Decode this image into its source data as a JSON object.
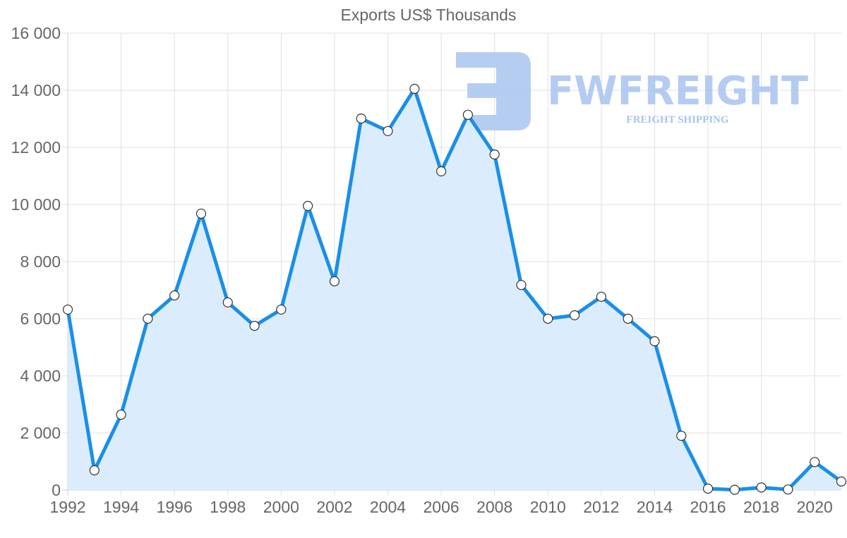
{
  "chart_data": {
    "type": "line",
    "title": "Exports US$ Thousands",
    "xlabel": "",
    "ylabel": "",
    "x": [
      1992,
      1993,
      1994,
      1995,
      1996,
      1997,
      1998,
      1999,
      2000,
      2001,
      2002,
      2003,
      2004,
      2005,
      2006,
      2007,
      2008,
      2009,
      2010,
      2011,
      2012,
      2013,
      2014,
      2015,
      2016,
      2017,
      2018,
      2019,
      2020,
      2021
    ],
    "series": [
      {
        "name": "Exports US$ Thousands",
        "values": [
          6320,
          690,
          2640,
          6000,
          6815,
          9680,
          6570,
          5750,
          6320,
          9950,
          7310,
          13010,
          12570,
          14050,
          11160,
          13140,
          11750,
          7180,
          6000,
          6120,
          6770,
          6000,
          5210,
          1900,
          50,
          10,
          90,
          20,
          980,
          300
        ]
      }
    ],
    "ylim": [
      0,
      16000
    ],
    "yticks": [
      "0",
      "2 000",
      "4 000",
      "6 000",
      "8 000",
      "10 000",
      "12 000",
      "14 000",
      "16 000"
    ],
    "xticks": [
      "1992",
      "1994",
      "1996",
      "1998",
      "2000",
      "2002",
      "2004",
      "2006",
      "2008",
      "2010",
      "2012",
      "2014",
      "2016",
      "2018",
      "2020"
    ],
    "grid": true,
    "legend": "none",
    "fill": true,
    "colors": {
      "line": "#1a8fe8",
      "fill": "#d9ecfc",
      "point_fill": "#ffffff",
      "point_stroke": "#333333",
      "grid": "#e0e0e0",
      "text": "#666666"
    }
  },
  "watermark": {
    "brand": "FWFREIGHT",
    "tagline": "FREIGHT SHIPPING",
    "color": "#a9c4f0"
  }
}
